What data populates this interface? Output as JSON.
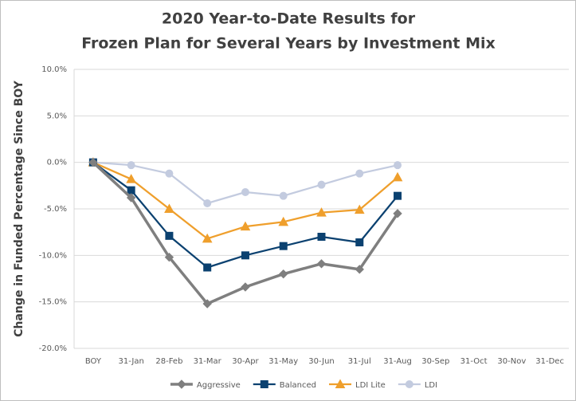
{
  "chart_data": {
    "type": "line",
    "title": [
      "2020 Year-to-Date Results for",
      "Frozen Plan for Several Years by Investment Mix"
    ],
    "y_axis_label": "Change in Funded Percentage Since BOY",
    "categories": [
      "BOY",
      "31-Jan",
      "28-Feb",
      "31-Mar",
      "30-Apr",
      "31-May",
      "30-Jun",
      "31-Jul",
      "31-Aug",
      "30-Sep",
      "31-Oct",
      "30-Nov",
      "31-Dec"
    ],
    "series": [
      {
        "name": "Aggressive",
        "color": "#7f7f7f",
        "marker": "diamond",
        "values": [
          0,
          -3.8,
          -10.2,
          -15.2,
          -13.4,
          -12.0,
          -10.9,
          -11.5,
          -5.5,
          null,
          null,
          null,
          null
        ]
      },
      {
        "name": "Balanced",
        "color": "#0b4170",
        "marker": "square",
        "values": [
          0,
          -3.0,
          -7.9,
          -11.3,
          -10.0,
          -9.0,
          -8.0,
          -8.6,
          -3.6,
          null,
          null,
          null,
          null
        ]
      },
      {
        "name": "LDI Lite",
        "color": "#ef9f2c",
        "marker": "triangle",
        "values": [
          0,
          -1.8,
          -5.0,
          -8.2,
          -6.9,
          -6.4,
          -5.4,
          -5.1,
          -1.6,
          null,
          null,
          null,
          null
        ]
      },
      {
        "name": "LDI",
        "color": "#c3cbdf",
        "marker": "circle",
        "values": [
          0,
          -0.3,
          -1.2,
          -4.4,
          -3.2,
          -3.6,
          -2.4,
          -1.2,
          -0.3,
          null,
          null,
          null,
          null
        ]
      }
    ],
    "ylim": [
      -20,
      10
    ],
    "yticks": [
      {
        "value": -20,
        "label": "-20.0%"
      },
      {
        "value": -15,
        "label": "-15.0%"
      },
      {
        "value": -10,
        "label": "-10.0%"
      },
      {
        "value": -5,
        "label": "-5.0%"
      },
      {
        "value": 0,
        "label": "0.0%"
      },
      {
        "value": 5,
        "label": "5.0%"
      },
      {
        "value": 10,
        "label": "10.0%"
      }
    ],
    "grid": true,
    "legend": "bottom"
  }
}
